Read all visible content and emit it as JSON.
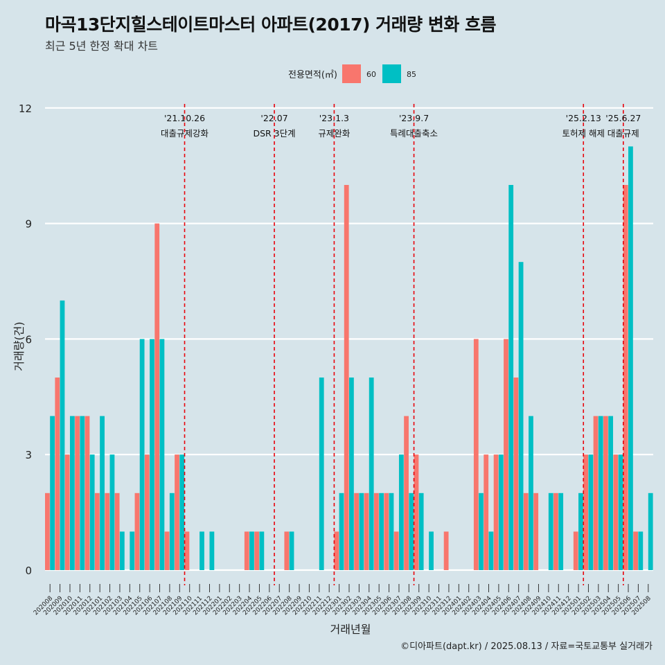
{
  "header": {
    "title": "마곡13단지힐스테이트마스터 아파트(2017) 거래량 변화 흐름",
    "subtitle": "최근 5년 한정 확대 차트",
    "caption": "©디아파트(dapt.kr) / 2025.08.13 / 자료=국토교통부 실거래가"
  },
  "colors": {
    "s60": "#f8766d",
    "s85": "#00bfc4",
    "vline": "#e8000b",
    "grid": "#ffffff",
    "background": "#d6e4ea"
  },
  "chart_data": {
    "type": "bar",
    "title": "마곡13단지힐스테이트마스터 아파트(2017) 거래량 변화 흐름",
    "xlabel": "거래년월",
    "ylabel": "거래량(건)",
    "ylim": [
      -0.5,
      12.3
    ],
    "yticks": [
      0,
      3,
      6,
      9,
      12
    ],
    "legend": {
      "title": "전용면적(㎡)",
      "position": "top"
    },
    "categories": [
      "202008",
      "202009",
      "202010",
      "202011",
      "202012",
      "202101",
      "202102",
      "202103",
      "202104",
      "202105",
      "202106",
      "202107",
      "202108",
      "202109",
      "202110",
      "202111",
      "202112",
      "202201",
      "202202",
      "202203",
      "202204",
      "202205",
      "202206",
      "202207",
      "202208",
      "202209",
      "202210",
      "202211",
      "202212",
      "202301",
      "202302",
      "202303",
      "202304",
      "202305",
      "202306",
      "202307",
      "202308",
      "202309",
      "202310",
      "202311",
      "202312",
      "202401",
      "202402",
      "202403",
      "202404",
      "202405",
      "202406",
      "202407",
      "202408",
      "202409",
      "202410",
      "202411",
      "202412",
      "202501",
      "202502",
      "202503",
      "202504",
      "202505",
      "202506",
      "202507",
      "202508"
    ],
    "series": [
      {
        "name": "60",
        "values": [
          2,
          5,
          3,
          4,
          4,
          2,
          2,
          2,
          0,
          2,
          3,
          9,
          1,
          3,
          1,
          0,
          0,
          0,
          0,
          0,
          1,
          1,
          0,
          0,
          1,
          0,
          0,
          0,
          0,
          1,
          10,
          2,
          2,
          2,
          2,
          1,
          4,
          3,
          0,
          0,
          1,
          0,
          0,
          6,
          3,
          3,
          6,
          5,
          2,
          2,
          0,
          2,
          0,
          1,
          3,
          4,
          4,
          3,
          10,
          1,
          0
        ]
      },
      {
        "name": "85",
        "values": [
          4,
          7,
          4,
          4,
          3,
          4,
          3,
          1,
          1,
          6,
          6,
          6,
          2,
          3,
          0,
          1,
          1,
          0,
          0,
          0,
          1,
          1,
          0,
          0,
          1,
          0,
          0,
          5,
          0,
          2,
          5,
          2,
          5,
          2,
          2,
          3,
          2,
          2,
          1,
          0,
          0,
          0,
          0,
          2,
          1,
          3,
          10,
          8,
          4,
          0,
          2,
          2,
          0,
          2,
          3,
          4,
          4,
          3,
          11,
          1,
          2
        ]
      }
    ],
    "events": [
      {
        "index": 14,
        "date": "'21.10.26",
        "label": "대출규제강화"
      },
      {
        "index": 23,
        "date": "'22.07",
        "label": "DSR 3단계"
      },
      {
        "index": 29,
        "date": "'23.1.3",
        "label": "규제완화"
      },
      {
        "index": 37,
        "date": "'23.9.7",
        "label": "특례대출축소"
      },
      {
        "index": 54,
        "date": "'25.2.13",
        "label": "토허제 해제"
      },
      {
        "index": 58,
        "date": "'25.6.27",
        "label": "대출규제"
      }
    ]
  }
}
